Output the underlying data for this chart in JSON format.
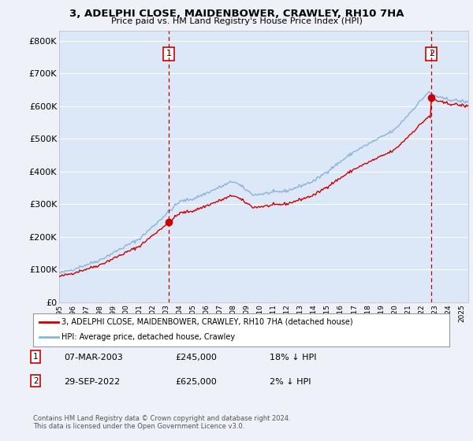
{
  "title": "3, ADELPHI CLOSE, MAIDENBOWER, CRAWLEY, RH10 7HA",
  "subtitle": "Price paid vs. HM Land Registry's House Price Index (HPI)",
  "legend_label_red": "3, ADELPHI CLOSE, MAIDENBOWER, CRAWLEY, RH10 7HA (detached house)",
  "legend_label_blue": "HPI: Average price, detached house, Crawley",
  "sale1_date": "07-MAR-2003",
  "sale1_price": "£245,000",
  "sale1_hpi": "18% ↓ HPI",
  "sale2_date": "29-SEP-2022",
  "sale2_price": "£625,000",
  "sale2_hpi": "2% ↓ HPI",
  "footnote": "Contains HM Land Registry data © Crown copyright and database right 2024.\nThis data is licensed under the Open Government Licence v3.0.",
  "ylim": [
    0,
    830000
  ],
  "yticks": [
    0,
    100000,
    200000,
    300000,
    400000,
    500000,
    600000,
    700000,
    800000
  ],
  "ytick_labels": [
    "£0",
    "£100K",
    "£200K",
    "£300K",
    "£400K",
    "£500K",
    "£600K",
    "£700K",
    "£800K"
  ],
  "background_color": "#eef2f8",
  "plot_bg_color": "#dce8f8",
  "red_color": "#cc0000",
  "blue_color": "#8ab4d8",
  "grid_color": "#ffffff",
  "sale1_year": 2003.17,
  "sale2_year": 2022.75,
  "sale1_value": 245000,
  "sale2_value": 625000,
  "xlim_left": 1995.0,
  "xlim_right": 2025.5
}
